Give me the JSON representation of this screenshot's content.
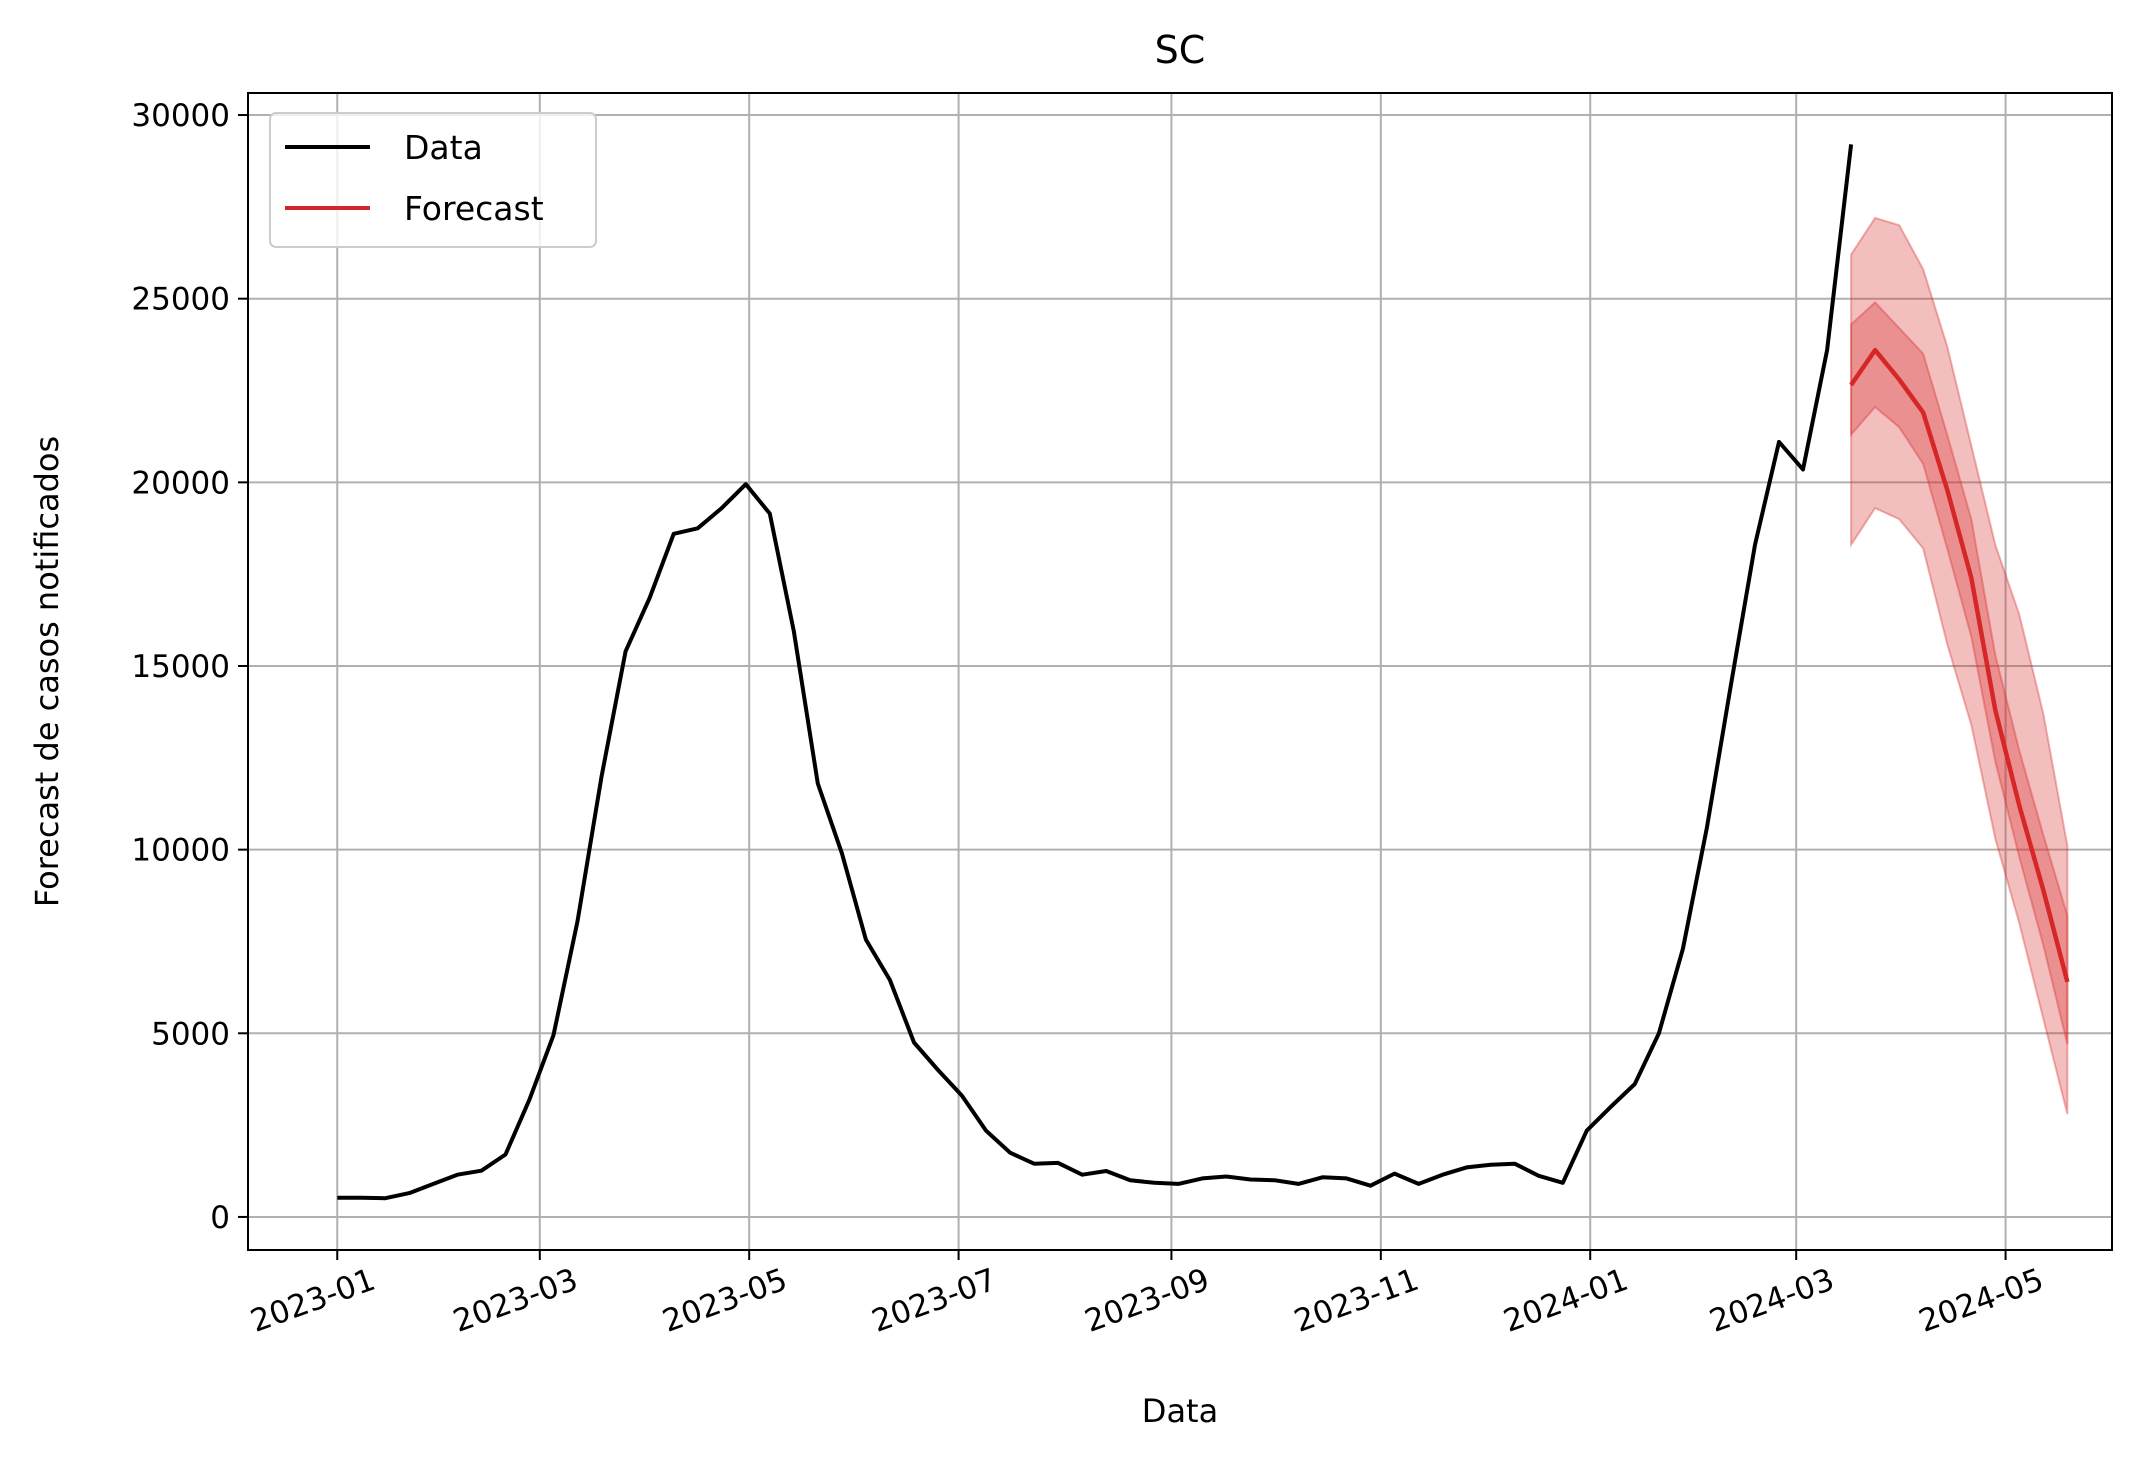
{
  "chart_data": {
    "type": "line",
    "title": "SC",
    "xlabel": "Data",
    "ylabel": "Forecast de casos notificados",
    "x_ticks": [
      "2023-01",
      "2023-03",
      "2023-05",
      "2023-07",
      "2023-09",
      "2023-11",
      "2024-01",
      "2024-03",
      "2024-05"
    ],
    "y_ticks": [
      "0",
      "5000",
      "10000",
      "15000",
      "20000",
      "25000",
      "30000"
    ],
    "ylim": [
      -900,
      30600
    ],
    "xlim": [
      "2022-12-06",
      "2024-06-01"
    ],
    "grid": true,
    "legend_position": "upper left",
    "legend": [
      "Data",
      "Forecast"
    ],
    "colors": {
      "data": "#000000",
      "forecast": "#d62728",
      "band": "#d62728"
    },
    "series": [
      {
        "name": "Data",
        "x": [
          "2023-01-01",
          "2023-01-08",
          "2023-01-15",
          "2023-01-22",
          "2023-01-29",
          "2023-02-05",
          "2023-02-12",
          "2023-02-19",
          "2023-02-26",
          "2023-03-05",
          "2023-03-12",
          "2023-03-19",
          "2023-03-26",
          "2023-04-02",
          "2023-04-09",
          "2023-04-16",
          "2023-04-23",
          "2023-04-30",
          "2023-05-07",
          "2023-05-14",
          "2023-05-21",
          "2023-05-28",
          "2023-06-04",
          "2023-06-11",
          "2023-06-18",
          "2023-06-25",
          "2023-07-02",
          "2023-07-09",
          "2023-07-16",
          "2023-07-23",
          "2023-07-30",
          "2023-08-06",
          "2023-08-13",
          "2023-08-20",
          "2023-08-27",
          "2023-09-03",
          "2023-09-10",
          "2023-09-17",
          "2023-09-24",
          "2023-10-01",
          "2023-10-08",
          "2023-10-15",
          "2023-10-22",
          "2023-10-29",
          "2023-11-05",
          "2023-11-12",
          "2023-11-19",
          "2023-11-26",
          "2023-12-03",
          "2023-12-10",
          "2023-12-17",
          "2023-12-24",
          "2023-12-31",
          "2024-01-07",
          "2024-01-14",
          "2024-01-21",
          "2024-01-28",
          "2024-02-04",
          "2024-02-11",
          "2024-02-18",
          "2024-02-25",
          "2024-03-03",
          "2024-03-10",
          "2024-03-17"
        ],
        "y": [
          520,
          520,
          510,
          650,
          900,
          1150,
          1260,
          1700,
          3200,
          4950,
          8050,
          12000,
          15400,
          16850,
          18600,
          18750,
          19300,
          19950,
          19150,
          15950,
          11800,
          9900,
          7550,
          6450,
          4750,
          4000,
          3300,
          2350,
          1750,
          1450,
          1470,
          1150,
          1250,
          1000,
          930,
          900,
          1050,
          1100,
          1020,
          1000,
          900,
          1080,
          1050,
          850,
          1180,
          900,
          1150,
          1350,
          1420,
          1450,
          1120,
          930,
          2350,
          3000,
          3620,
          5000,
          7300,
          10600,
          14500,
          18300,
          21100,
          20350,
          23600,
          29200
        ]
      },
      {
        "name": "Forecast",
        "x": [
          "2024-03-17",
          "2024-03-24",
          "2024-03-31",
          "2024-04-07",
          "2024-04-14",
          "2024-04-21",
          "2024-04-28",
          "2024-05-05",
          "2024-05-12",
          "2024-05-19"
        ],
        "y": [
          22650,
          23600,
          22800,
          21900,
          19800,
          17400,
          13800,
          11200,
          8900,
          6400
        ],
        "inner_band": {
          "lower": [
            21300,
            22050,
            21500,
            20500,
            18200,
            15800,
            12400,
            9800,
            7400,
            4700
          ],
          "upper": [
            24300,
            24900,
            24200,
            23500,
            21300,
            19000,
            15300,
            12700,
            10400,
            8200
          ]
        },
        "outer_band": {
          "lower": [
            18300,
            19300,
            19000,
            18200,
            15600,
            13400,
            10300,
            8000,
            5400,
            2800
          ],
          "upper": [
            26200,
            27200,
            27000,
            25800,
            23700,
            21000,
            18300,
            16400,
            13700,
            10100
          ]
        }
      }
    ]
  }
}
